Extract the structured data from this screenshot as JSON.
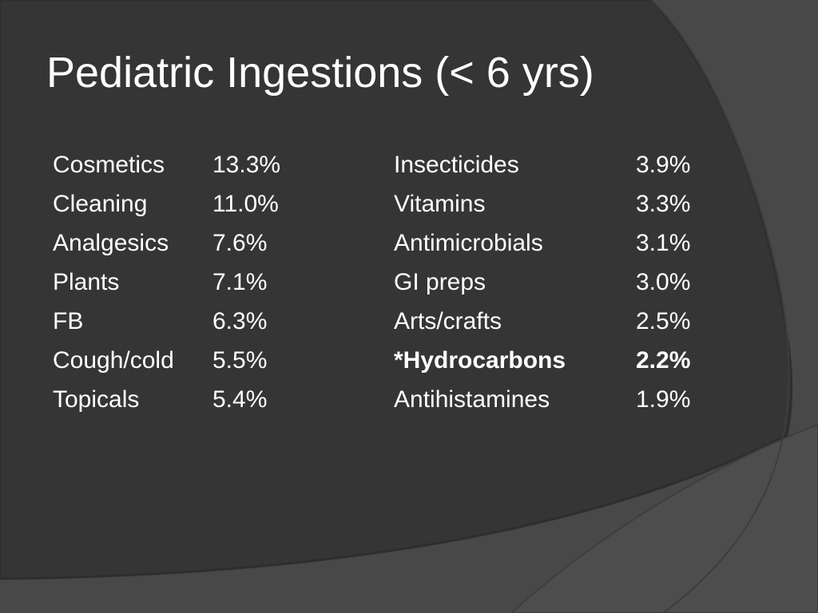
{
  "title": "Pediatric Ingestions (< 6 yrs)",
  "table": {
    "rows": [
      [
        "Cosmetics",
        "13.3%",
        "Insecticides",
        "3.9%"
      ],
      [
        "Cleaning",
        "11.0%",
        "Vitamins",
        "3.3%"
      ],
      [
        "Analgesics",
        "7.6%",
        "Antimicrobials",
        "3.1%"
      ],
      [
        "Plants",
        "7.1%",
        "GI preps",
        "3.0%"
      ],
      [
        "FB",
        "6.3%",
        "Arts/crafts",
        "2.5%"
      ],
      [
        "Cough/cold",
        "5.5%",
        "*Hydrocarbons",
        "2.2%"
      ],
      [
        "Topicals",
        "5.4%",
        "Antihistamines",
        "1.9%"
      ]
    ]
  }
}
